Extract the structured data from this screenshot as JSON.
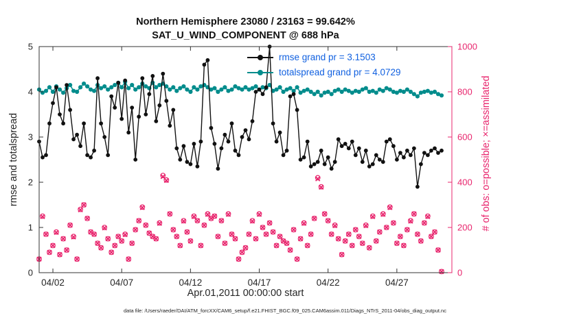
{
  "title": {
    "line1": "Northern Hemisphere 23080 / 23163 = 99.642%",
    "line2": "SAT_U_WIND_COMPONENT @ 688 hPa"
  },
  "axes": {
    "ylabel_left": "rmse and totalspread",
    "ylabel_right": "# of obs: o=possible; ×=assimilated",
    "xlabel": "Apr.01,2011 00:00:00 start"
  },
  "legend": [
    {
      "label": "rmse grand pr = 3.1503",
      "color": "#111111"
    },
    {
      "label": "totalspread grand pr = 4.0729",
      "color": "#008c8c"
    }
  ],
  "footer": "data file: /Users/raeder/DAI/ATM_forcXX/CAM6_setup/f.e21.FHIST_BGC.f09_025.CAM6assim.011/Diags_NTrS_2011-04/obs_diag_output.nc",
  "colors": {
    "rmse": "#111111",
    "totalspread": "#008c8c",
    "obs": "#e8256d",
    "legend_text": "#1060e0",
    "axis": "#333333",
    "tick_label": "#262626"
  },
  "chart_data": {
    "type": "line",
    "title": "Northern Hemisphere 23080 / 23163 = 99.642% — SAT_U_WIND_COMPONENT @ 688 hPa",
    "xlabel": "Apr.01,2011 00:00:00 start",
    "ylabel_left": "rmse and totalspread",
    "ylabel_right": "# of obs: o=possible; ×=assimilated",
    "grid": false,
    "legend_position": "inside-top-center",
    "xlim": [
      1,
      31
    ],
    "xticks": [
      2,
      7,
      12,
      17,
      22,
      27
    ],
    "xtick_labels": [
      "04/02",
      "04/07",
      "04/12",
      "04/17",
      "04/22",
      "04/27"
    ],
    "ylim_left": [
      0,
      5
    ],
    "yticks_left": [
      0,
      1,
      2,
      3,
      4,
      5
    ],
    "ylim_right": [
      0,
      1000
    ],
    "yticks_right": [
      0,
      200,
      400,
      600,
      800,
      1000
    ],
    "x": {
      "start": 1.0,
      "step": 0.25,
      "unit": "day of April 2011, 6-hourly"
    },
    "n_points": 118,
    "stats": {
      "possible": 23163,
      "assimilated": 23080,
      "pct_assimilated": "99.642%",
      "rmse_grand_pr": 3.1503,
      "totalspread_grand_pr": 4.0729
    },
    "series": [
      {
        "name": "rmse",
        "axis": "left",
        "color": "#111111",
        "marker": "filled-circle",
        "values": [
          2.9,
          2.55,
          2.6,
          3.3,
          3.75,
          4.1,
          3.5,
          3.3,
          4.15,
          3.6,
          2.95,
          3.05,
          2.8,
          3.3,
          2.6,
          2.55,
          2.7,
          4.3,
          3.3,
          3.0,
          2.6,
          3.9,
          3.65,
          4.2,
          3.4,
          4.25,
          3.1,
          3.65,
          2.5,
          3.45,
          4.3,
          3.5,
          3.95,
          4.35,
          3.35,
          3.7,
          4.4,
          3.8,
          3.25,
          3.6,
          2.75,
          2.5,
          2.8,
          2.45,
          2.4,
          2.85,
          2.35,
          2.9,
          4.6,
          4.7,
          3.2,
          2.85,
          2.3,
          2.75,
          3.05,
          2.9,
          3.3,
          2.7,
          2.6,
          3.0,
          3.15,
          2.95,
          3.35,
          4.0,
          4.05,
          3.95,
          4.1,
          5.0,
          3.3,
          2.9,
          3.1,
          2.6,
          2.7,
          3.9,
          3.95,
          3.6,
          2.5,
          2.55,
          2.9,
          2.35,
          2.4,
          2.45,
          2.7,
          2.4,
          2.55,
          2.3,
          2.45,
          2.95,
          2.8,
          2.85,
          2.75,
          2.9,
          2.6,
          2.75,
          2.45,
          2.7,
          2.35,
          2.4,
          2.6,
          2.5,
          2.45,
          2.9,
          2.95,
          2.8,
          2.5,
          2.65,
          2.55,
          2.7,
          2.6,
          2.75,
          1.9,
          2.4,
          2.65,
          2.6,
          2.7,
          2.75,
          2.65,
          2.7
        ]
      },
      {
        "name": "totalspread",
        "axis": "left",
        "color": "#008c8c",
        "marker": "filled-circle",
        "values": [
          4.05,
          3.98,
          4.02,
          4.1,
          4.0,
          4.12,
          4.05,
          3.98,
          4.08,
          4.15,
          4.02,
          4.0,
          4.1,
          4.18,
          4.12,
          4.05,
          4.02,
          4.15,
          4.08,
          4.12,
          4.05,
          4.1,
          4.15,
          4.2,
          4.1,
          4.22,
          4.08,
          4.15,
          4.05,
          4.1,
          4.18,
          4.12,
          4.08,
          4.2,
          4.1,
          4.15,
          4.18,
          4.12,
          4.05,
          4.1,
          4.02,
          4.08,
          4.12,
          4.05,
          4.0,
          4.1,
          4.05,
          4.12,
          4.15,
          4.1,
          4.05,
          4.08,
          4.0,
          4.05,
          4.1,
          4.02,
          4.05,
          4.12,
          4.08,
          4.05,
          4.1,
          4.05,
          4.08,
          4.12,
          4.05,
          4.1,
          4.08,
          4.15,
          4.02,
          4.05,
          4.1,
          4.0,
          4.05,
          4.08,
          4.02,
          4.1,
          3.98,
          4.02,
          4.05,
          4.0,
          3.95,
          4.0,
          3.92,
          3.98,
          4.0,
          3.95,
          4.02,
          4.05,
          4.0,
          4.05,
          4.02,
          3.98,
          4.02,
          4.0,
          4.05,
          4.08,
          4.0,
          4.02,
          3.98,
          4.05,
          4.02,
          4.08,
          4.05,
          4.0,
          3.98,
          4.02,
          4.0,
          4.05,
          4.0,
          3.95,
          3.9,
          3.98,
          4.0,
          4.02,
          3.98,
          4.0,
          3.95,
          3.92
        ]
      },
      {
        "name": "possible_obs",
        "axis": "right",
        "color": "#e8256d",
        "marker": "o",
        "values": [
          60,
          250,
          170,
          90,
          120,
          180,
          80,
          150,
          100,
          210,
          160,
          60,
          280,
          300,
          240,
          180,
          170,
          130,
          110,
          200,
          150,
          90,
          120,
          160,
          140,
          170,
          60,
          130,
          190,
          230,
          290,
          210,
          175,
          160,
          150,
          220,
          430,
          410,
          260,
          190,
          160,
          120,
          230,
          180,
          140,
          250,
          230,
          120,
          210,
          260,
          240,
          250,
          160,
          230,
          130,
          260,
          170,
          150,
          60,
          90,
          110,
          170,
          230,
          150,
          260,
          200,
          170,
          220,
          180,
          120,
          160,
          140,
          130,
          100,
          190,
          60,
          150,
          220,
          120,
          170,
          240,
          420,
          380,
          260,
          230,
          170,
          210,
          150,
          80,
          140,
          170,
          120,
          190,
          160,
          130,
          210,
          110,
          250,
          140,
          180,
          260,
          200,
          290,
          220,
          130,
          160,
          120,
          190,
          230,
          260,
          170,
          140,
          220,
          250,
          160,
          180,
          100,
          5
        ]
      },
      {
        "name": "assimilated_obs",
        "axis": "right",
        "color": "#e8256d",
        "marker": "x",
        "values": [
          60,
          248,
          170,
          90,
          120,
          178,
          80,
          150,
          100,
          210,
          158,
          60,
          278,
          300,
          240,
          180,
          170,
          130,
          110,
          198,
          150,
          90,
          120,
          160,
          140,
          168,
          60,
          130,
          190,
          230,
          288,
          210,
          175,
          160,
          150,
          218,
          425,
          408,
          260,
          190,
          160,
          120,
          228,
          180,
          140,
          248,
          230,
          120,
          210,
          258,
          240,
          250,
          160,
          230,
          130,
          258,
          170,
          150,
          60,
          90,
          110,
          170,
          228,
          150,
          258,
          200,
          170,
          220,
          180,
          120,
          160,
          140,
          130,
          100,
          190,
          60,
          150,
          218,
          120,
          170,
          240,
          415,
          378,
          260,
          230,
          170,
          208,
          150,
          80,
          140,
          170,
          120,
          190,
          160,
          130,
          208,
          110,
          248,
          140,
          180,
          258,
          200,
          288,
          220,
          130,
          160,
          120,
          190,
          228,
          260,
          170,
          140,
          220,
          248,
          160,
          180,
          100,
          5
        ]
      }
    ]
  }
}
